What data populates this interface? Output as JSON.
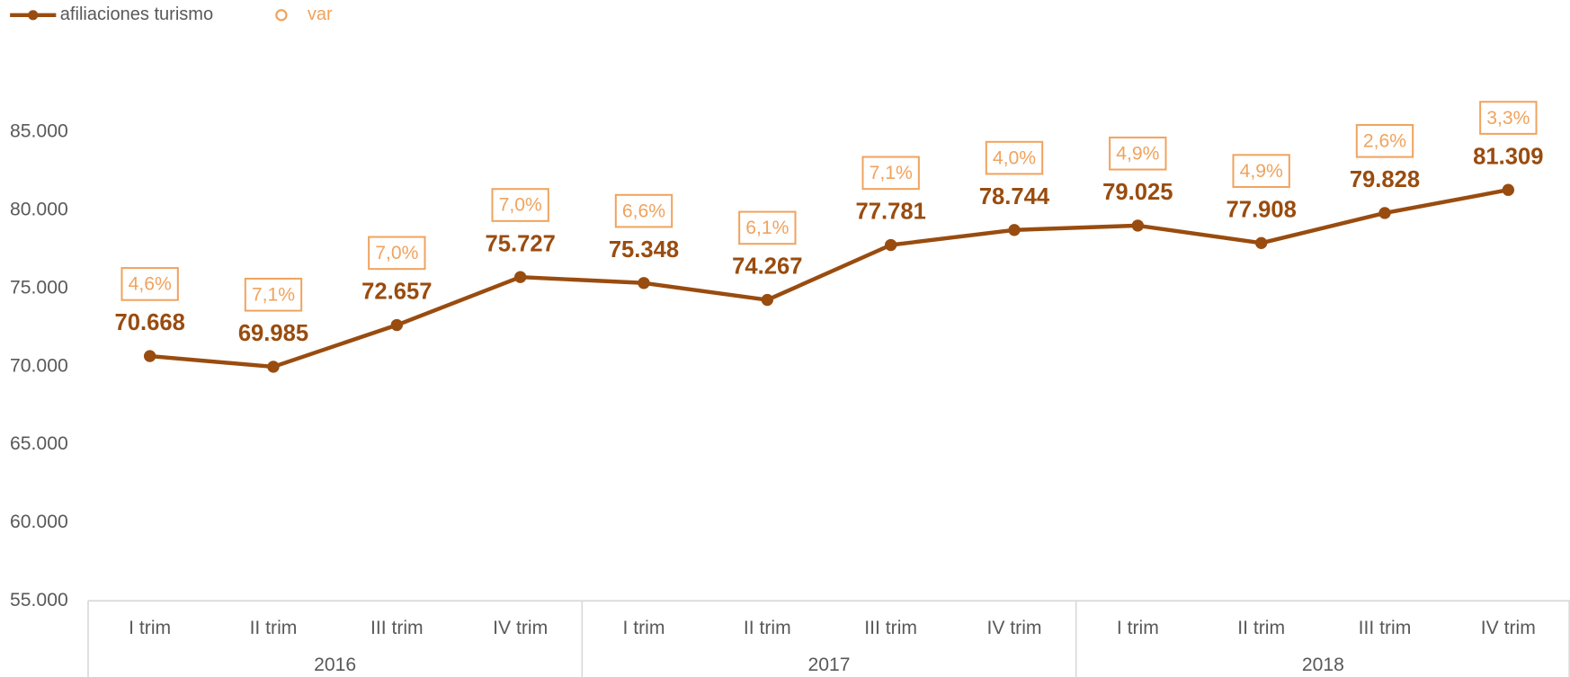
{
  "chart_data": {
    "type": "line",
    "category_groups": [
      {
        "label": "2016",
        "categories": [
          "I trim",
          "II trim",
          "III trim",
          "IV trim"
        ]
      },
      {
        "label": "2017",
        "categories": [
          "I trim",
          "II trim",
          "III trim",
          "IV trim"
        ]
      },
      {
        "label": "2018",
        "categories": [
          "I trim",
          "II trim",
          "III trim",
          "IV trim"
        ]
      }
    ],
    "series": [
      {
        "name": "afiliaciones turismo",
        "color": "#994c0f",
        "values": [
          70668,
          69985,
          72657,
          75727,
          75348,
          74267,
          77781,
          78744,
          79025,
          77908,
          79828,
          81309
        ],
        "value_labels": [
          "70.668",
          "69.985",
          "72.657",
          "75.727",
          "75.348",
          "74.267",
          "77.781",
          "78.744",
          "79.025",
          "77.908",
          "79.828",
          "81.309"
        ]
      },
      {
        "name": "var",
        "color": "#f0a35e",
        "axis": "y2",
        "values": [
          4.6,
          7.1,
          7.0,
          7.0,
          6.6,
          6.1,
          7.1,
          4.0,
          4.9,
          4.9,
          2.6,
          3.3
        ],
        "value_labels": [
          "4,6%",
          "7,1%",
          "7,0%",
          "7,0%",
          "6,6%",
          "6,1%",
          "7,1%",
          "4,0%",
          "4,9%",
          "4,9%",
          "2,6%",
          "3,3%"
        ]
      }
    ],
    "ylim": [
      55000,
      90000
    ],
    "yticks": [
      {
        "value": 55000,
        "label": "55.000"
      },
      {
        "value": 60000,
        "label": "60.000"
      },
      {
        "value": 65000,
        "label": "65.000"
      },
      {
        "value": 70000,
        "label": "70.000"
      },
      {
        "value": 75000,
        "label": "75.000"
      },
      {
        "value": 80000,
        "label": "80.000"
      },
      {
        "value": 85000,
        "label": "85.000"
      }
    ],
    "legend": "top-left"
  }
}
